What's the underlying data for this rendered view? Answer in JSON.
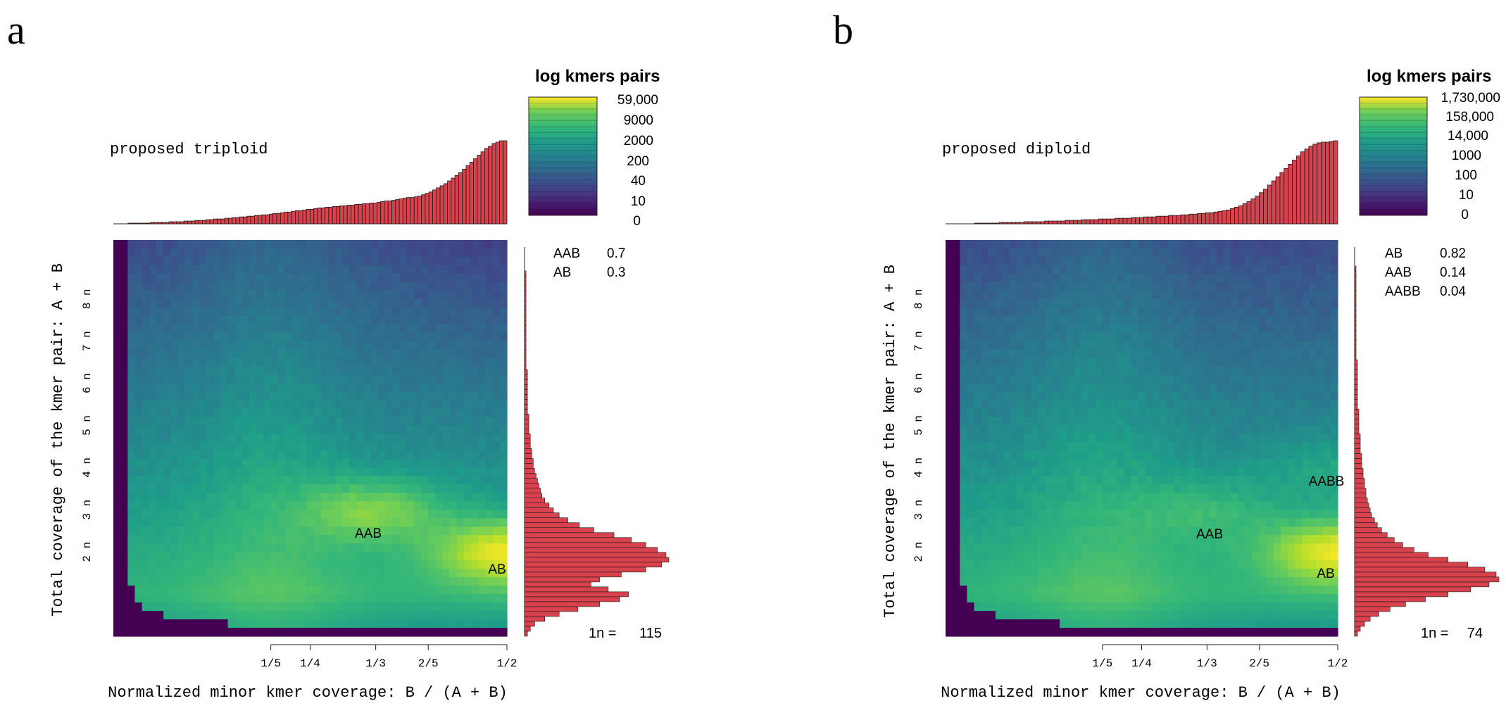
{
  "chart_data": [
    {
      "type": "heatmap",
      "panel_label": "a",
      "title": "proposed triploid",
      "xlabel": "Normalized minor kmer coverage: B / (A + B)",
      "ylabel": "Total coverage of the kmer pair: A + B",
      "x_ticks": [
        "1/5",
        "1/4",
        "1/3",
        "2/5",
        "1/2"
      ],
      "x_tick_values": [
        0.2,
        0.25,
        0.3333,
        0.4,
        0.5
      ],
      "y_ticks": [
        "2 n",
        "3 n",
        "4 n",
        "5 n",
        "6 n",
        "7 n",
        "8 n"
      ],
      "y_tick_values": [
        2,
        3,
        4,
        5,
        6,
        7,
        8
      ],
      "xlim": [
        0,
        0.5
      ],
      "ylim_n": [
        0,
        9.4
      ],
      "legend_title": "log kmers pairs",
      "legend_labels": [
        "59,000",
        "9000",
        "2000",
        "200",
        "40",
        "10",
        "0"
      ],
      "annotations": [
        {
          "label": "AAB",
          "x": 0.333,
          "y": 2.9
        },
        {
          "label": "AB",
          "x": 0.5,
          "y": 1.6
        }
      ],
      "peaks": [
        {
          "label": "AB",
          "x": 0.5,
          "y_n": 2,
          "strength": 1.0
        },
        {
          "label": "AAB",
          "x": 0.333,
          "y_n": 3,
          "strength": 0.65
        }
      ],
      "fractions": [
        {
          "label": "AAB",
          "value": "0.7"
        },
        {
          "label": "AB",
          "value": "0.3"
        }
      ],
      "one_n_label": "1n =",
      "one_n_value": "115",
      "top_histogram_counts": [
        0,
        0,
        0,
        0,
        1,
        1,
        1,
        1,
        1,
        1,
        2,
        2,
        2,
        2,
        2,
        3,
        3,
        3,
        3,
        4,
        4,
        4,
        5,
        5,
        5,
        6,
        6,
        7,
        7,
        7,
        8,
        8,
        9,
        9,
        10,
        10,
        11,
        11,
        12,
        12,
        13,
        13,
        14,
        15,
        15,
        16,
        17,
        17,
        18,
        19,
        19,
        20,
        21,
        21,
        22,
        23,
        23,
        24,
        24,
        25,
        25,
        26,
        26,
        27,
        27,
        28,
        28,
        29,
        29,
        30,
        30,
        31,
        32,
        33,
        33,
        34,
        35,
        36,
        37,
        38,
        38,
        39,
        40,
        42,
        44,
        46,
        49,
        52,
        55,
        58,
        62,
        66,
        70,
        74,
        79,
        84,
        89,
        94,
        99,
        104,
        109,
        112,
        116,
        118,
        120,
        120
      ],
      "right_histogram_counts": [
        2,
        4,
        7,
        14,
        24,
        37,
        52,
        66,
        72,
        58,
        46,
        52,
        67,
        84,
        95,
        100,
        98,
        92,
        84,
        74,
        62,
        48,
        38,
        30,
        24,
        20,
        17,
        14,
        12,
        11,
        10,
        9,
        8,
        7,
        6,
        6,
        5,
        5,
        4,
        4,
        4,
        3,
        3,
        3,
        3,
        2,
        2,
        2,
        2,
        2,
        2,
        2,
        2,
        2,
        1,
        1,
        1,
        1,
        1,
        1,
        1,
        1,
        1,
        1,
        1,
        1,
        1,
        1,
        1,
        1,
        1,
        1,
        1,
        1,
        0,
        0,
        0,
        0,
        0,
        0
      ]
    },
    {
      "type": "heatmap",
      "panel_label": "b",
      "title": "proposed diploid",
      "xlabel": "Normalized minor kmer coverage: B / (A + B)",
      "ylabel": "Total coverage of the kmer pair: A + B",
      "x_ticks": [
        "1/5",
        "1/4",
        "1/3",
        "2/5",
        "1/2"
      ],
      "x_tick_values": [
        0.2,
        0.25,
        0.3333,
        0.4,
        0.5
      ],
      "y_ticks": [
        "2 n",
        "3 n",
        "4 n",
        "5 n",
        "6 n",
        "7 n",
        "8 n"
      ],
      "y_tick_values": [
        2,
        3,
        4,
        5,
        6,
        7,
        8
      ],
      "xlim": [
        0,
        0.5
      ],
      "ylim_n": [
        0,
        9.4
      ],
      "legend_title": "log kmers pairs",
      "legend_labels": [
        "1,730,000",
        "158,000",
        "14,000",
        "1000",
        "100",
        "10",
        "0"
      ],
      "annotations": [
        {
          "label": "AABB",
          "x": 0.5,
          "y": 4.0
        },
        {
          "label": "AAB",
          "x": 0.333,
          "y": 2.9
        },
        {
          "label": "AB",
          "x": 0.5,
          "y": 1.9
        }
      ],
      "peaks": [
        {
          "label": "AB",
          "x": 0.5,
          "y_n": 2,
          "strength": 1.0
        },
        {
          "label": "AAB",
          "x": 0.333,
          "y_n": 3,
          "strength": 0.3
        },
        {
          "label": "AABB",
          "x": 0.5,
          "y_n": 4,
          "strength": 0.25
        }
      ],
      "fractions": [
        {
          "label": "AB",
          "value": "0.82"
        },
        {
          "label": "AAB",
          "value": "0.14"
        },
        {
          "label": "AABB",
          "value": "0.04"
        }
      ],
      "one_n_label": "1n =",
      "one_n_value": "74",
      "top_histogram_counts": [
        0,
        0,
        0,
        0,
        0,
        0,
        0,
        1,
        1,
        1,
        1,
        1,
        1,
        2,
        2,
        2,
        2,
        2,
        2,
        3,
        3,
        3,
        3,
        3,
        4,
        4,
        4,
        4,
        4,
        5,
        5,
        5,
        5,
        6,
        6,
        6,
        6,
        7,
        7,
        7,
        7,
        8,
        8,
        8,
        8,
        9,
        9,
        9,
        10,
        10,
        10,
        11,
        11,
        11,
        12,
        12,
        12,
        13,
        13,
        14,
        14,
        15,
        15,
        16,
        16,
        17,
        18,
        19,
        20,
        22,
        24,
        26,
        29,
        32,
        36,
        40,
        45,
        50,
        56,
        62,
        68,
        74,
        80,
        86,
        92,
        98,
        104,
        108,
        112,
        115,
        117,
        118,
        118,
        119,
        120
      ],
      "right_histogram_counts": [
        2,
        4,
        7,
        11,
        17,
        25,
        36,
        50,
        66,
        82,
        95,
        102,
        100,
        92,
        80,
        66,
        52,
        42,
        34,
        28,
        23,
        19,
        16,
        14,
        12,
        11,
        10,
        9,
        8,
        8,
        7,
        7,
        6,
        6,
        5,
        5,
        5,
        4,
        4,
        4,
        4,
        3,
        3,
        3,
        3,
        3,
        2,
        2,
        2,
        2,
        2,
        2,
        2,
        2,
        2,
        2,
        1,
        1,
        1,
        1,
        1,
        1,
        1,
        1,
        1,
        1,
        1,
        1,
        1,
        1,
        1,
        1,
        1,
        1,
        1,
        0,
        0,
        0,
        0,
        0
      ]
    }
  ],
  "colors": {
    "histogram_fill": "#d7424d",
    "histogram_stroke": "#1a1a1a",
    "empty_cell": "#440154"
  }
}
